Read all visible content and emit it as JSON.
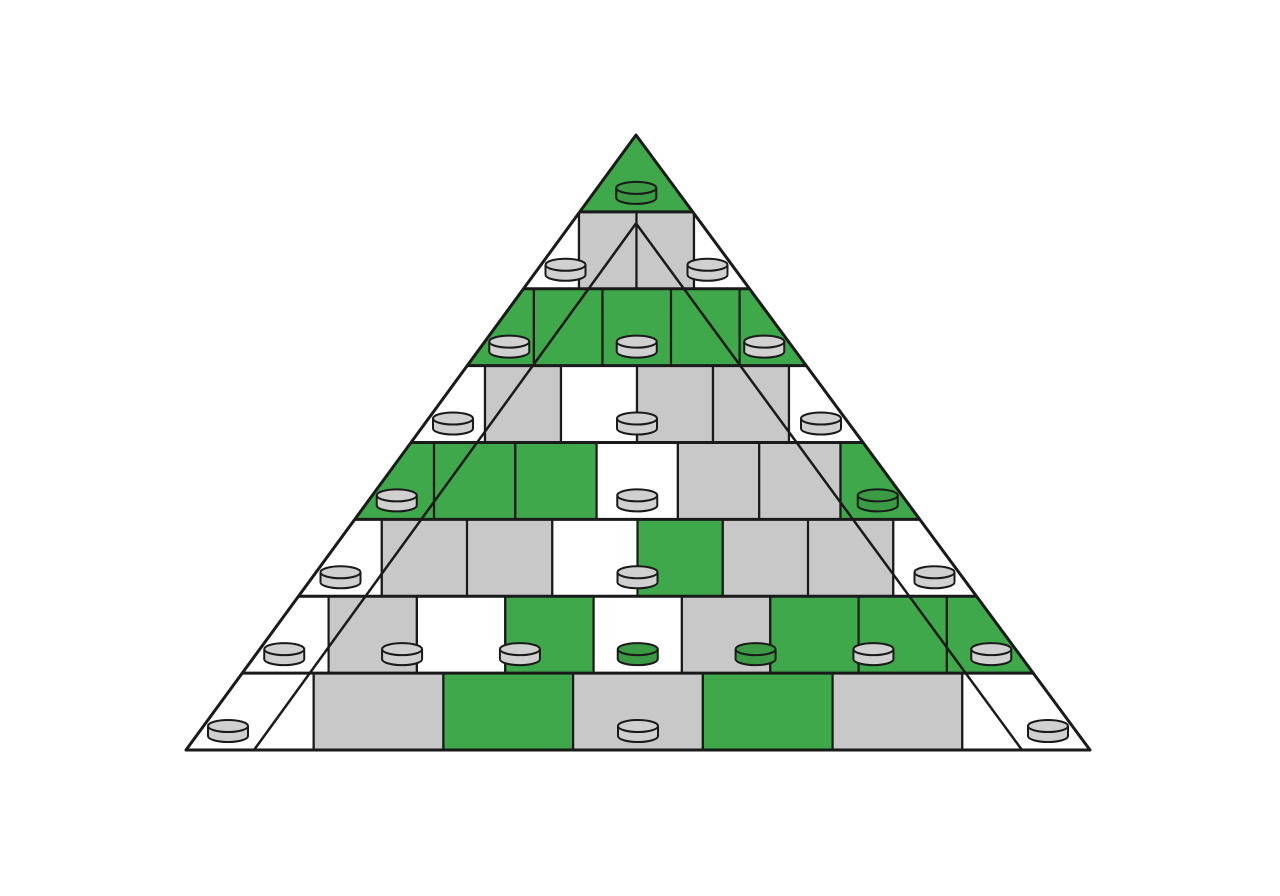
{
  "diagram": {
    "type": "pyramid-block-stack",
    "rows": 8,
    "colors": {
      "green": "#3fa84b",
      "gray": "#c8c8c8",
      "white": "#ffffff",
      "outline": "#1a1a1a",
      "stud_gray": "#d0d0d0",
      "stud_green": "#3b9b45"
    },
    "row_cells": [
      [
        "green"
      ],
      [
        "white",
        "gray",
        "gray",
        "white"
      ],
      [
        "green",
        "green",
        "green",
        "green",
        "green"
      ],
      [
        "white",
        "gray",
        "white",
        "gray",
        "gray",
        "white"
      ],
      [
        "green",
        "green",
        "green",
        "white",
        "gray",
        "gray",
        "green"
      ],
      [
        "white",
        "gray",
        "gray",
        "white",
        "green",
        "gray",
        "gray",
        "white"
      ],
      [
        "white",
        "gray",
        "white",
        "green",
        "white",
        "gray",
        "green",
        "green",
        "green"
      ],
      [
        "white",
        "gray",
        "green",
        "gray",
        "green",
        "gray",
        "white"
      ]
    ],
    "studs_per_row": [
      [
        "green"
      ],
      [
        "gray",
        "gray"
      ],
      [
        "gray",
        "gray",
        "gray"
      ],
      [
        "gray",
        "gray",
        "gray"
      ],
      [
        "gray",
        "gray",
        "green"
      ],
      [
        "gray",
        "gray",
        "gray"
      ],
      [
        "gray",
        "gray",
        "gray",
        "green",
        "green",
        "gray",
        "gray"
      ],
      [
        "gray",
        "gray",
        "gray"
      ]
    ]
  }
}
